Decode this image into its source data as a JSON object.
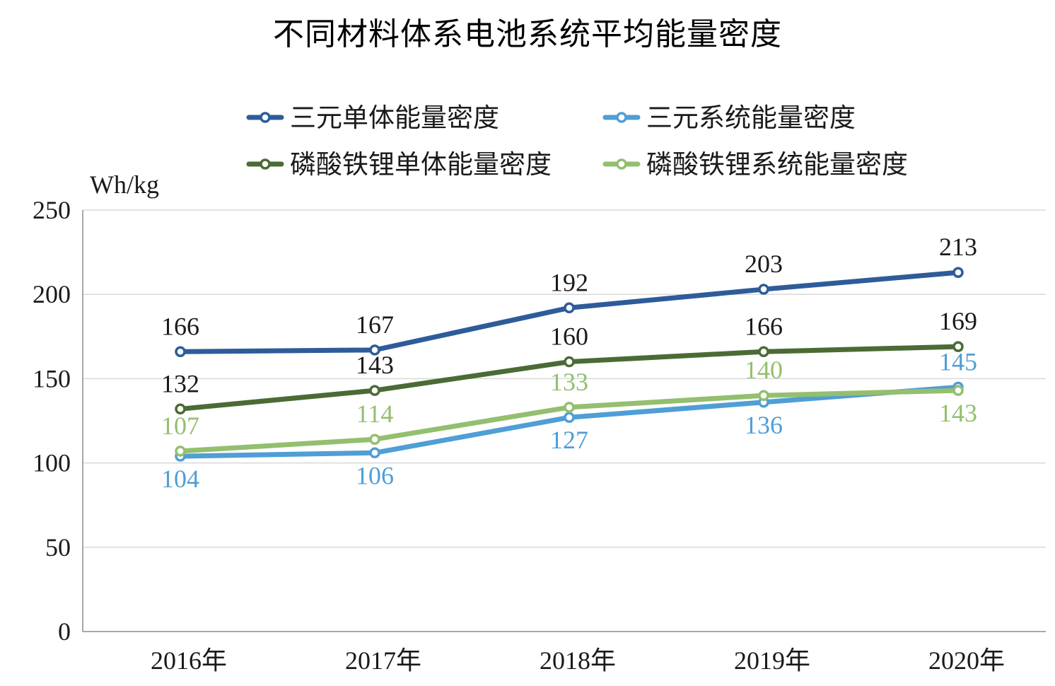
{
  "chart_data": {
    "type": "line",
    "title": "不同材料体系电池系统平均能量密度",
    "ylabel": "Wh/kg",
    "xlabel": "",
    "categories": [
      "2016年",
      "2017年",
      "2018年",
      "2019年",
      "2020年"
    ],
    "ylim": [
      0,
      250
    ],
    "yticks": [
      0,
      50,
      100,
      150,
      200,
      250
    ],
    "grid": true,
    "legend_position": "top",
    "series": [
      {
        "name": "三元单体能量密度",
        "values": [
          166,
          167,
          192,
          203,
          213
        ],
        "color": "#2E5C99",
        "label_color": "#1a1a1a",
        "label_pos": "above"
      },
      {
        "name": "三元系统能量密度",
        "values": [
          104,
          106,
          127,
          136,
          145
        ],
        "color": "#4F9ED6",
        "label_color": "#4F9ED6",
        "label_pos": [
          "below",
          "below",
          "below",
          "below",
          "above"
        ]
      },
      {
        "name": "磷酸铁锂单体能量密度",
        "values": [
          132,
          143,
          160,
          166,
          169
        ],
        "color": "#4A6B35",
        "label_color": "#1a1a1a",
        "label_pos": "above"
      },
      {
        "name": "磷酸铁锂系统能量密度",
        "values": [
          107,
          114,
          133,
          140,
          143
        ],
        "color": "#93BF6E",
        "label_color": "#93BF6E",
        "label_pos": [
          "above",
          "above",
          "above",
          "above",
          "below"
        ]
      }
    ]
  }
}
